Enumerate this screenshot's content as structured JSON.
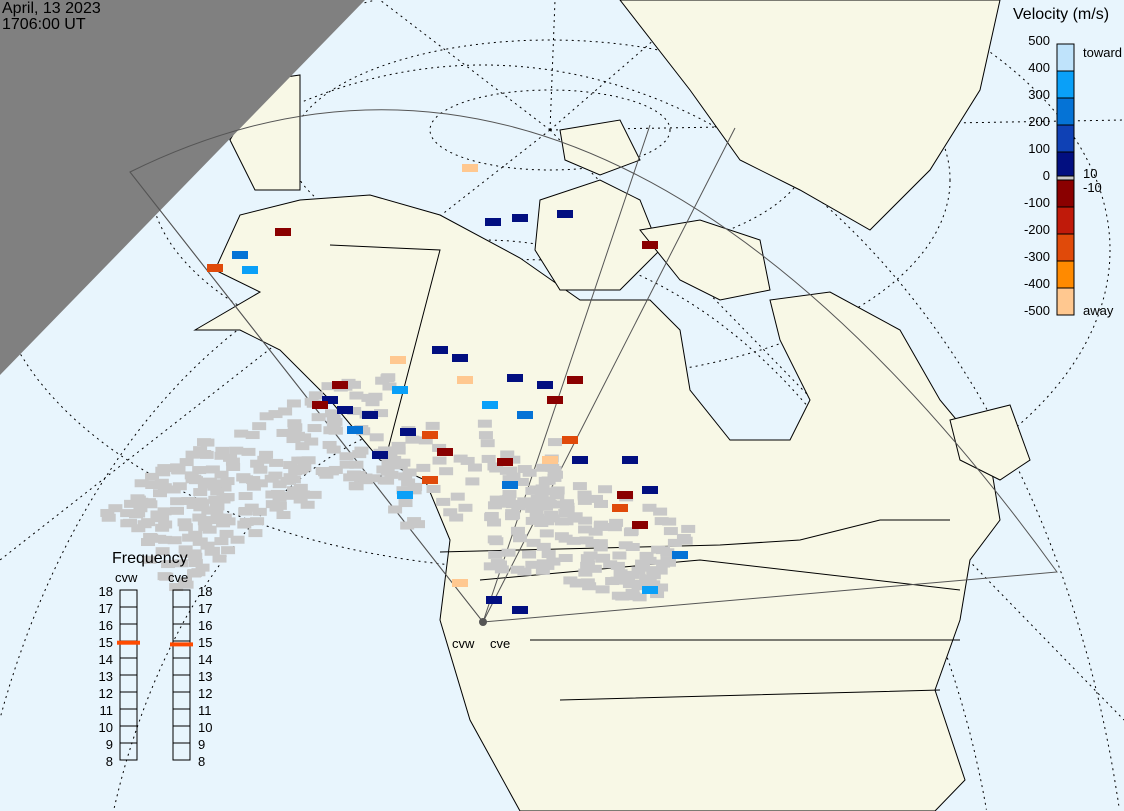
{
  "header": {
    "date": "April, 13 2023",
    "time": "1706:00 UT"
  },
  "velocity_legend": {
    "title": "Velocity (m/s)",
    "ticks": [
      "500",
      "400",
      "300",
      "200",
      "100",
      "0",
      "-100",
      "-200",
      "-300",
      "-400",
      "-500"
    ],
    "toward_label": "toward",
    "away_label": "away",
    "pos_threshold": "10",
    "neg_threshold": "-10",
    "colors": [
      "#bfe3fb",
      "#0aa0f8",
      "#0573d6",
      "#0f41b5",
      "#020f80",
      "#8a0000",
      "#c01a0a",
      "#e04a0a",
      "#ff8a00",
      "#ffc890"
    ]
  },
  "frequency": {
    "title": "Frequency",
    "ticks": [
      "18",
      "17",
      "16",
      "15",
      "14",
      "13",
      "12",
      "11",
      "10",
      "9",
      "8"
    ],
    "radars": [
      {
        "name": "cvw",
        "value_mhz": 14.9
      },
      {
        "name": "cve",
        "value_mhz": 14.8
      }
    ],
    "marker_color": "#ff4a00"
  },
  "radar_labels": {
    "west": "cvw",
    "east": "cve"
  },
  "colors": {
    "ocean": "#e8f5fd",
    "land": "#f8f8e6",
    "night": "#808080",
    "no_velocity": "#c8c8c8"
  }
}
